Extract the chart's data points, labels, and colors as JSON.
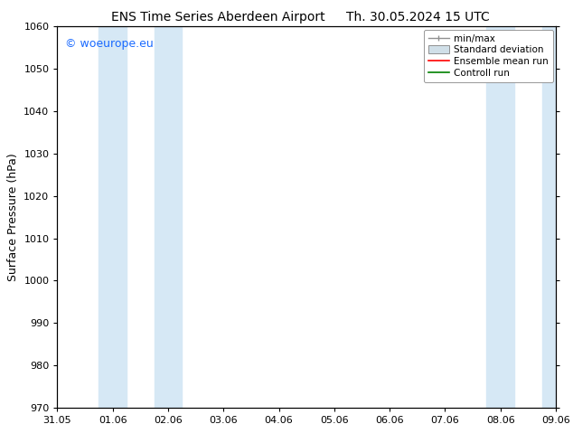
{
  "title": "ENS Time Series Aberdeen Airport",
  "date_label": "Th. 30.05.2024 15 UTC",
  "ylabel": "Surface Pressure (hPa)",
  "ylim": [
    970,
    1060
  ],
  "yticks": [
    970,
    980,
    990,
    1000,
    1010,
    1020,
    1030,
    1040,
    1050,
    1060
  ],
  "x_tick_labels": [
    "31.05",
    "01.06",
    "02.06",
    "03.06",
    "04.06",
    "05.06",
    "06.06",
    "07.06",
    "08.06",
    "09.06"
  ],
  "x_tick_positions": [
    0,
    1,
    2,
    3,
    4,
    5,
    6,
    7,
    8,
    9
  ],
  "xlim": [
    0,
    9
  ],
  "shaded_bands": [
    {
      "x_start": 0.75,
      "x_end": 1.25,
      "color": "#d6e8f5"
    },
    {
      "x_start": 1.75,
      "x_end": 2.25,
      "color": "#d6e8f5"
    },
    {
      "x_start": 7.75,
      "x_end": 8.25,
      "color": "#d6e8f5"
    },
    {
      "x_start": 8.75,
      "x_end": 9.0,
      "color": "#d6e8f5"
    }
  ],
  "legend_entries": [
    {
      "label": "min/max",
      "color": "#a0a0a0",
      "style": "errorbar"
    },
    {
      "label": "Standard deviation",
      "color": "#c8d8ea",
      "style": "box"
    },
    {
      "label": "Ensemble mean run",
      "color": "red",
      "style": "line"
    },
    {
      "label": "Controll run",
      "color": "green",
      "style": "line"
    }
  ],
  "watermark_text": "© woeurope.eu",
  "watermark_color": "#1a6aff",
  "background_color": "#ffffff",
  "plot_background": "#ffffff",
  "title_fontsize": 10,
  "date_fontsize": 10,
  "axis_label_fontsize": 9,
  "tick_fontsize": 8,
  "legend_fontsize": 7.5,
  "watermark_fontsize": 9
}
